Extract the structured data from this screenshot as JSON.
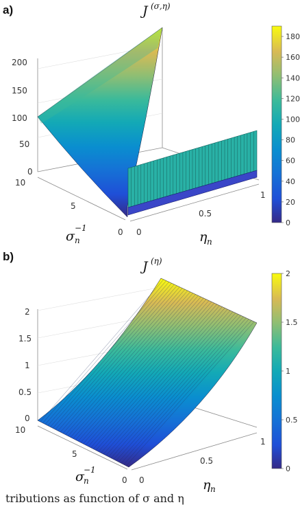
{
  "chart_data": [
    {
      "type": "surface",
      "panel_label": "a)",
      "title": "J",
      "title_superscript": "(σ,η)",
      "xlabel": "σ",
      "xlabel_subscript": "n",
      "xlabel_superscript": "−1",
      "ylabel": "η",
      "ylabel_subscript": "n",
      "x_range": [
        0,
        10
      ],
      "y_range": [
        0,
        1
      ],
      "z_range": [
        0,
        200
      ],
      "x_ticks": [
        "10",
        "5",
        "0"
      ],
      "y_ticks": [
        "0",
        "0.5",
        "1"
      ],
      "z_ticks": [
        "200",
        "150",
        "100",
        "50",
        "0"
      ],
      "colorbar": {
        "range": [
          0,
          190
        ],
        "ticks": [
          "180",
          "160",
          "140",
          "120",
          "100",
          "80",
          "60",
          "40",
          "20",
          "0"
        ]
      },
      "surface_samples": {
        "description_values": "J(sigma_inv, eta) at corners",
        "at_sigma_inv_10_eta_0": 100,
        "at_sigma_inv_0_eta_1": 190,
        "at_sigma_inv_0_eta_0": 0,
        "wall_at_sigma_inv_0": 120
      }
    },
    {
      "type": "surface",
      "panel_label": "b)",
      "title": "J",
      "title_superscript": "(η)",
      "xlabel": "σ",
      "xlabel_subscript": "n",
      "xlabel_superscript": "−1",
      "ylabel": "η",
      "ylabel_subscript": "n",
      "x_range": [
        0,
        10
      ],
      "y_range": [
        0,
        1
      ],
      "z_range": [
        0,
        2
      ],
      "x_ticks": [
        "10",
        "5",
        "0"
      ],
      "y_ticks": [
        "0",
        "0.5",
        "1"
      ],
      "z_ticks": [
        "2",
        "1.5",
        "1",
        "0.5",
        "0"
      ],
      "colorbar": {
        "range": [
          0,
          2
        ],
        "ticks": [
          "2",
          "1.5",
          "1",
          "0.5",
          "0"
        ]
      },
      "surface_samples": {
        "at_eta_0": 0,
        "at_eta_1": 2
      }
    }
  ],
  "caption": "tributions as function of σ and η"
}
